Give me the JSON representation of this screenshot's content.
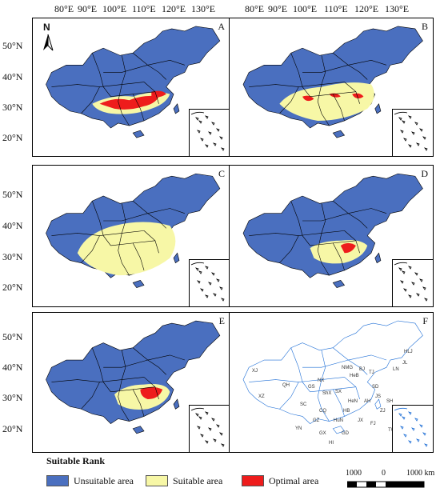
{
  "lon_labels": [
    "80°E",
    "90°E",
    "100°E",
    "110°E",
    "120°E",
    "130°E"
  ],
  "lat_labels": [
    "50°N",
    "40°N",
    "30°N",
    "20°N"
  ],
  "panels": [
    {
      "letter": "A",
      "pattern": "optimal-south"
    },
    {
      "letter": "B",
      "pattern": "suitable-wide"
    },
    {
      "letter": "C",
      "pattern": "suitable-large"
    },
    {
      "letter": "D",
      "pattern": "suitable-mid"
    },
    {
      "letter": "E",
      "pattern": "suitable-east"
    },
    {
      "letter": "F",
      "pattern": "provinces"
    }
  ],
  "north_label": "N",
  "province_labels": [
    "HLJ",
    "JL",
    "LN",
    "NMG",
    "XJ",
    "XZ",
    "QH",
    "GS",
    "NX",
    "SX",
    "HeB",
    "BJ",
    "TJ",
    "SD",
    "HeN",
    "ShX",
    "SC",
    "HB",
    "AH",
    "JS",
    "SH",
    "ZJ",
    "CQ",
    "GZ",
    "HuN",
    "JX",
    "FJ",
    "YN",
    "GX",
    "GD",
    "TW",
    "HI",
    "SCSI"
  ],
  "legend": {
    "title": "Suitable Rank",
    "items": [
      {
        "label": "Unsuitable area",
        "color": "#4a6fbf"
      },
      {
        "label": "Suitable area",
        "color": "#f7f7a6"
      },
      {
        "label": "Optimal area",
        "color": "#ee1c1c"
      }
    ]
  },
  "scale": {
    "left": "1000",
    "mid": "0",
    "right": "1000 km"
  },
  "colors": {
    "unsuitable": "#4a6fbf",
    "suitable": "#f7f7a6",
    "optimal": "#ee1c1c",
    "outline": "#1f6fd6"
  }
}
